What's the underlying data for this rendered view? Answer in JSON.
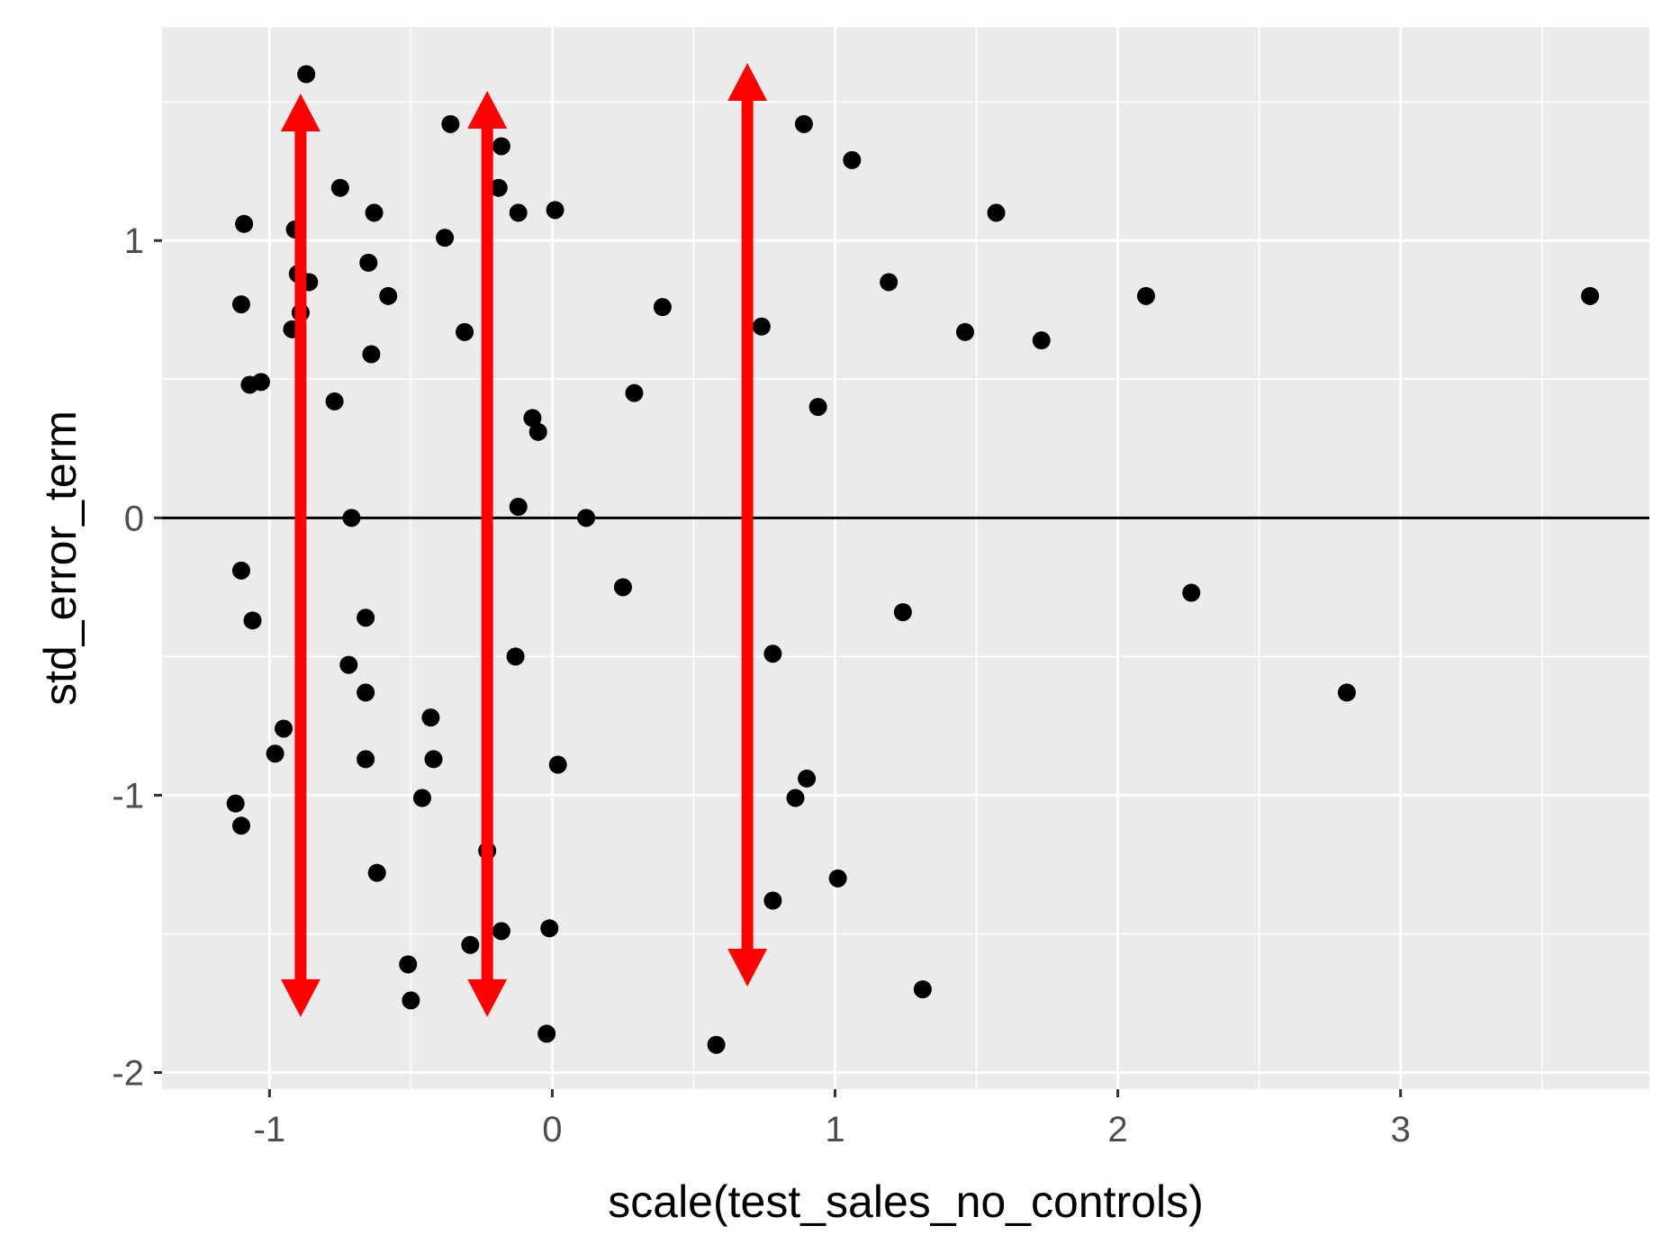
{
  "chart_data": {
    "type": "scatter",
    "title": "",
    "xlabel": "scale(test_sales_no_controls)",
    "ylabel": "std_error_term",
    "xlim": [
      -1.38,
      3.88
    ],
    "ylim": [
      -2.06,
      1.77
    ],
    "x_ticks": [
      -1,
      0,
      1,
      2,
      3
    ],
    "x_tick_labels": [
      "-1",
      "0",
      "1",
      "2",
      "3"
    ],
    "y_ticks": [
      -2,
      -1,
      0,
      1
    ],
    "y_tick_labels": [
      "-2",
      "-1",
      "0",
      "1"
    ],
    "grid": true,
    "background": "#ebebeb",
    "grid_color": "#ffffff",
    "point_color": "#000000",
    "reference_line": {
      "y": 0,
      "color": "#000000"
    },
    "annotation_color": "#ff0000",
    "arrows": [
      {
        "x": -0.89,
        "y_from": -1.8,
        "y_to": 1.53
      },
      {
        "x": -0.23,
        "y_from": -1.8,
        "y_to": 1.54
      },
      {
        "x": 0.69,
        "y_from": -1.69,
        "y_to": 1.64
      }
    ],
    "points": [
      {
        "x": -0.87,
        "y": 1.6
      },
      {
        "x": -0.36,
        "y": 1.42
      },
      {
        "x": -0.18,
        "y": 1.34
      },
      {
        "x": -0.19,
        "y": 1.19
      },
      {
        "x": -0.12,
        "y": 1.1
      },
      {
        "x": 0.01,
        "y": 1.11
      },
      {
        "x": -0.38,
        "y": 1.01
      },
      {
        "x": -1.09,
        "y": 1.06
      },
      {
        "x": -0.91,
        "y": 1.04
      },
      {
        "x": -0.75,
        "y": 1.19
      },
      {
        "x": -0.63,
        "y": 1.1
      },
      {
        "x": -0.65,
        "y": 0.92
      },
      {
        "x": -0.9,
        "y": 0.88
      },
      {
        "x": -0.86,
        "y": 0.85
      },
      {
        "x": -0.58,
        "y": 0.8
      },
      {
        "x": -1.1,
        "y": 0.77
      },
      {
        "x": -0.89,
        "y": 0.74
      },
      {
        "x": -0.92,
        "y": 0.68
      },
      {
        "x": -0.31,
        "y": 0.67
      },
      {
        "x": -0.64,
        "y": 0.59
      },
      {
        "x": -1.07,
        "y": 0.48
      },
      {
        "x": -1.03,
        "y": 0.49
      },
      {
        "x": -0.77,
        "y": 0.42
      },
      {
        "x": -0.07,
        "y": 0.36
      },
      {
        "x": -0.05,
        "y": 0.31
      },
      {
        "x": -0.12,
        "y": 0.04
      },
      {
        "x": -0.71,
        "y": 0.0
      },
      {
        "x": 0.12,
        "y": 0.0
      },
      {
        "x": 0.89,
        "y": 1.42
      },
      {
        "x": 1.06,
        "y": 1.29
      },
      {
        "x": 1.57,
        "y": 1.1
      },
      {
        "x": 1.19,
        "y": 0.85
      },
      {
        "x": 2.1,
        "y": 0.8
      },
      {
        "x": 3.67,
        "y": 0.8
      },
      {
        "x": 0.39,
        "y": 0.76
      },
      {
        "x": 0.74,
        "y": 0.69
      },
      {
        "x": 1.46,
        "y": 0.67
      },
      {
        "x": 1.73,
        "y": 0.64
      },
      {
        "x": 0.29,
        "y": 0.45
      },
      {
        "x": 0.94,
        "y": 0.4
      },
      {
        "x": -1.1,
        "y": -0.19
      },
      {
        "x": -1.06,
        "y": -0.37
      },
      {
        "x": -0.66,
        "y": -0.36
      },
      {
        "x": 0.25,
        "y": -0.25
      },
      {
        "x": 2.26,
        "y": -0.27
      },
      {
        "x": 1.24,
        "y": -0.34
      },
      {
        "x": -0.72,
        "y": -0.53
      },
      {
        "x": -0.13,
        "y": -0.5
      },
      {
        "x": 0.78,
        "y": -0.49
      },
      {
        "x": -0.66,
        "y": -0.63
      },
      {
        "x": 2.81,
        "y": -0.63
      },
      {
        "x": -0.43,
        "y": -0.72
      },
      {
        "x": -0.95,
        "y": -0.76
      },
      {
        "x": -0.98,
        "y": -0.85
      },
      {
        "x": -0.66,
        "y": -0.87
      },
      {
        "x": -0.42,
        "y": -0.87
      },
      {
        "x": 0.02,
        "y": -0.89
      },
      {
        "x": 0.9,
        "y": -0.94
      },
      {
        "x": -0.46,
        "y": -1.01
      },
      {
        "x": 0.86,
        "y": -1.01
      },
      {
        "x": -1.12,
        "y": -1.03
      },
      {
        "x": -1.1,
        "y": -1.11
      },
      {
        "x": -0.23,
        "y": -1.2
      },
      {
        "x": -0.62,
        "y": -1.28
      },
      {
        "x": 1.01,
        "y": -1.3
      },
      {
        "x": 0.78,
        "y": -1.38
      },
      {
        "x": -0.18,
        "y": -1.49
      },
      {
        "x": -0.01,
        "y": -1.48
      },
      {
        "x": -0.29,
        "y": -1.54
      },
      {
        "x": -0.51,
        "y": -1.61
      },
      {
        "x": -0.5,
        "y": -1.74
      },
      {
        "x": 1.31,
        "y": -1.7
      },
      {
        "x": -0.02,
        "y": -1.86
      },
      {
        "x": 0.58,
        "y": -1.9
      }
    ]
  }
}
